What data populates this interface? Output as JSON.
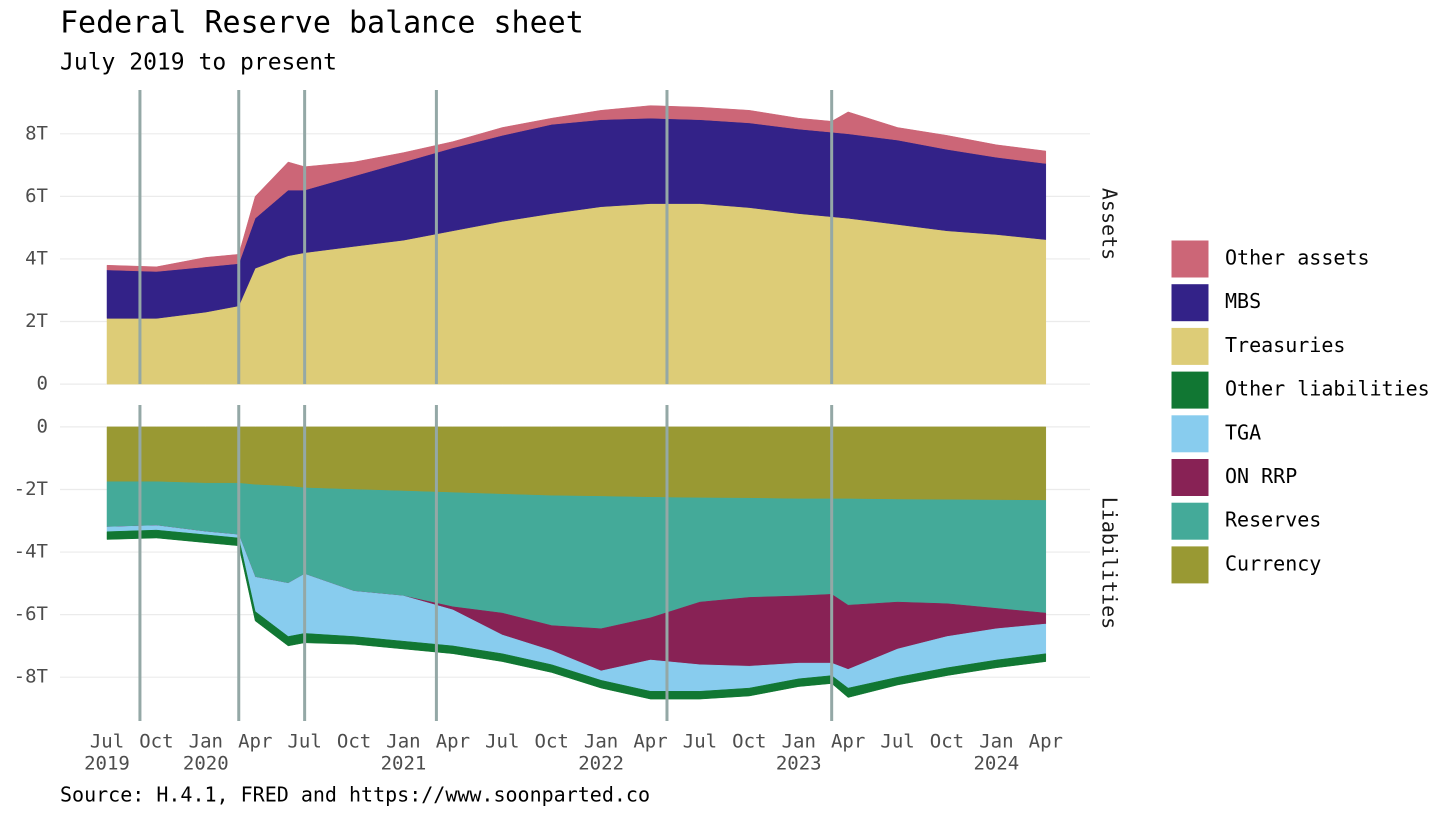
{
  "title": "Federal Reserve balance sheet",
  "subtitle": "July 2019 to present",
  "source": "Source: H.4.1, FRED and https://www.soonparted.co",
  "chart_data": [
    {
      "type": "area",
      "stacked": true,
      "panel": "Assets",
      "x": [
        "2019-07",
        "2019-10",
        "2020-01",
        "2020-03",
        "2020-04",
        "2020-06",
        "2020-07",
        "2020-10",
        "2021-01",
        "2021-04",
        "2021-07",
        "2021-10",
        "2022-01",
        "2022-04",
        "2022-07",
        "2022-10",
        "2023-01",
        "2023-03",
        "2023-04",
        "2023-07",
        "2023-10",
        "2024-01",
        "2024-04"
      ],
      "series": [
        {
          "name": "Treasuries",
          "color": "#ddcc77",
          "values": [
            2.1,
            2.1,
            2.3,
            2.5,
            3.7,
            4.1,
            4.2,
            4.4,
            4.6,
            4.9,
            5.2,
            5.45,
            5.67,
            5.77,
            5.77,
            5.64,
            5.45,
            5.35,
            5.3,
            5.1,
            4.9,
            4.78,
            4.62
          ]
        },
        {
          "name": "MBS",
          "color": "#332288",
          "values": [
            1.55,
            1.5,
            1.45,
            1.35,
            1.6,
            2.1,
            2.0,
            2.25,
            2.5,
            2.65,
            2.75,
            2.85,
            2.78,
            2.73,
            2.68,
            2.71,
            2.7,
            2.7,
            2.7,
            2.7,
            2.6,
            2.47,
            2.43
          ]
        },
        {
          "name": "Other assets",
          "color": "#cc6677",
          "values": [
            0.15,
            0.15,
            0.3,
            0.3,
            0.7,
            0.9,
            0.75,
            0.45,
            0.3,
            0.2,
            0.25,
            0.2,
            0.3,
            0.4,
            0.4,
            0.4,
            0.35,
            0.35,
            0.7,
            0.4,
            0.45,
            0.4,
            0.4
          ]
        }
      ],
      "ylim": [
        -0.7,
        9.4
      ],
      "yticks": [
        0,
        {
          "value": 2,
          "label": "2T"
        },
        {
          "value": 4,
          "label": "4T"
        },
        {
          "value": 6,
          "label": "6T"
        },
        {
          "value": 8,
          "label": "8T"
        }
      ],
      "vlines": [
        "2019-09",
        "2020-03",
        "2020-07",
        "2021-03",
        "2022-05",
        "2023-03"
      ],
      "vline_color": "#94a8a6",
      "grid": true
    },
    {
      "type": "area",
      "stacked": true,
      "panel": "Liabilities",
      "x": [
        "2019-07",
        "2019-10",
        "2020-01",
        "2020-03",
        "2020-04",
        "2020-06",
        "2020-07",
        "2020-10",
        "2021-01",
        "2021-04",
        "2021-07",
        "2021-10",
        "2022-01",
        "2022-04",
        "2022-07",
        "2022-10",
        "2023-01",
        "2023-03",
        "2023-04",
        "2023-07",
        "2023-10",
        "2024-01",
        "2024-04"
      ],
      "series": [
        {
          "name": "Currency",
          "color": "#999933",
          "values": [
            -1.75,
            -1.75,
            -1.8,
            -1.8,
            -1.85,
            -1.9,
            -1.95,
            -2.0,
            -2.05,
            -2.1,
            -2.15,
            -2.2,
            -2.22,
            -2.25,
            -2.27,
            -2.28,
            -2.3,
            -2.3,
            -2.3,
            -2.32,
            -2.33,
            -2.34,
            -2.35
          ]
        },
        {
          "name": "Reserves",
          "color": "#44aa99",
          "values": [
            -1.45,
            -1.4,
            -1.55,
            -1.65,
            -2.95,
            -3.1,
            -2.75,
            -3.25,
            -3.35,
            -3.65,
            -3.8,
            -4.15,
            -4.23,
            -3.85,
            -3.33,
            -3.17,
            -3.1,
            -3.05,
            -3.4,
            -3.28,
            -3.32,
            -3.46,
            -3.6
          ]
        },
        {
          "name": "ON RRP",
          "color": "#882255",
          "values": [
            0,
            0,
            0,
            0,
            0,
            0,
            0,
            0,
            0,
            -0.1,
            -0.7,
            -0.8,
            -1.35,
            -1.35,
            -2.0,
            -2.2,
            -2.15,
            -2.2,
            -2.05,
            -1.5,
            -1.05,
            -0.65,
            -0.35
          ]
        },
        {
          "name": "TGA",
          "color": "#88ccee",
          "values": [
            -0.15,
            -0.15,
            -0.1,
            -0.1,
            -1.1,
            -1.7,
            -1.9,
            -1.45,
            -1.45,
            -1.15,
            -0.6,
            -0.45,
            -0.3,
            -1.0,
            -0.85,
            -0.7,
            -0.5,
            -0.4,
            -0.6,
            -0.9,
            -1.0,
            -1.0,
            -0.95
          ]
        },
        {
          "name": "Other liabilities",
          "color": "#117733",
          "values": [
            -0.25,
            -0.25,
            -0.25,
            -0.25,
            -0.3,
            -0.3,
            -0.3,
            -0.25,
            -0.25,
            -0.25,
            -0.25,
            -0.25,
            -0.25,
            -0.25,
            -0.25,
            -0.25,
            -0.25,
            -0.25,
            -0.3,
            -0.25,
            -0.25,
            -0.25,
            -0.25
          ]
        }
      ],
      "ylim": [
        -9.4,
        0.7
      ],
      "yticks": [
        {
          "value": -8,
          "label": "-8T"
        },
        {
          "value": -6,
          "label": "-6T"
        },
        {
          "value": -4,
          "label": "-4T"
        },
        {
          "value": -2,
          "label": "-2T"
        },
        0
      ],
      "vlines": [
        "2019-09",
        "2020-03",
        "2020-07",
        "2021-03",
        "2022-05",
        "2023-03"
      ],
      "vline_color": "#94a8a6",
      "grid": true,
      "xticks": [
        {
          "value": "2019-07",
          "label": "Jul"
        },
        {
          "value": "2019-10",
          "label": "Oct"
        },
        {
          "value": "2020-01",
          "label": "Jan"
        },
        {
          "value": "2020-04",
          "label": "Apr"
        },
        {
          "value": "2020-07",
          "label": "Jul"
        },
        {
          "value": "2020-10",
          "label": "Oct"
        },
        {
          "value": "2021-01",
          "label": "Jan"
        },
        {
          "value": "2021-04",
          "label": "Apr"
        },
        {
          "value": "2021-07",
          "label": "Jul"
        },
        {
          "value": "2021-10",
          "label": "Oct"
        },
        {
          "value": "2022-01",
          "label": "Jan"
        },
        {
          "value": "2022-04",
          "label": "Apr"
        },
        {
          "value": "2022-07",
          "label": "Jul"
        },
        {
          "value": "2022-10",
          "label": "Oct"
        },
        {
          "value": "2023-01",
          "label": "Jan"
        },
        {
          "value": "2023-04",
          "label": "Apr"
        },
        {
          "value": "2023-07",
          "label": "Jul"
        },
        {
          "value": "2023-10",
          "label": "Oct"
        },
        {
          "value": "2024-01",
          "label": "Jan"
        },
        {
          "value": "2024-04",
          "label": "Apr"
        }
      ],
      "year_ticks": [
        {
          "value": "2019-07",
          "label": "2019"
        },
        {
          "value": "2020-01",
          "label": "2020"
        },
        {
          "value": "2021-01",
          "label": "2021"
        },
        {
          "value": "2022-01",
          "label": "2022"
        },
        {
          "value": "2023-01",
          "label": "2023"
        },
        {
          "value": "2024-01",
          "label": "2024"
        }
      ]
    }
  ]
}
